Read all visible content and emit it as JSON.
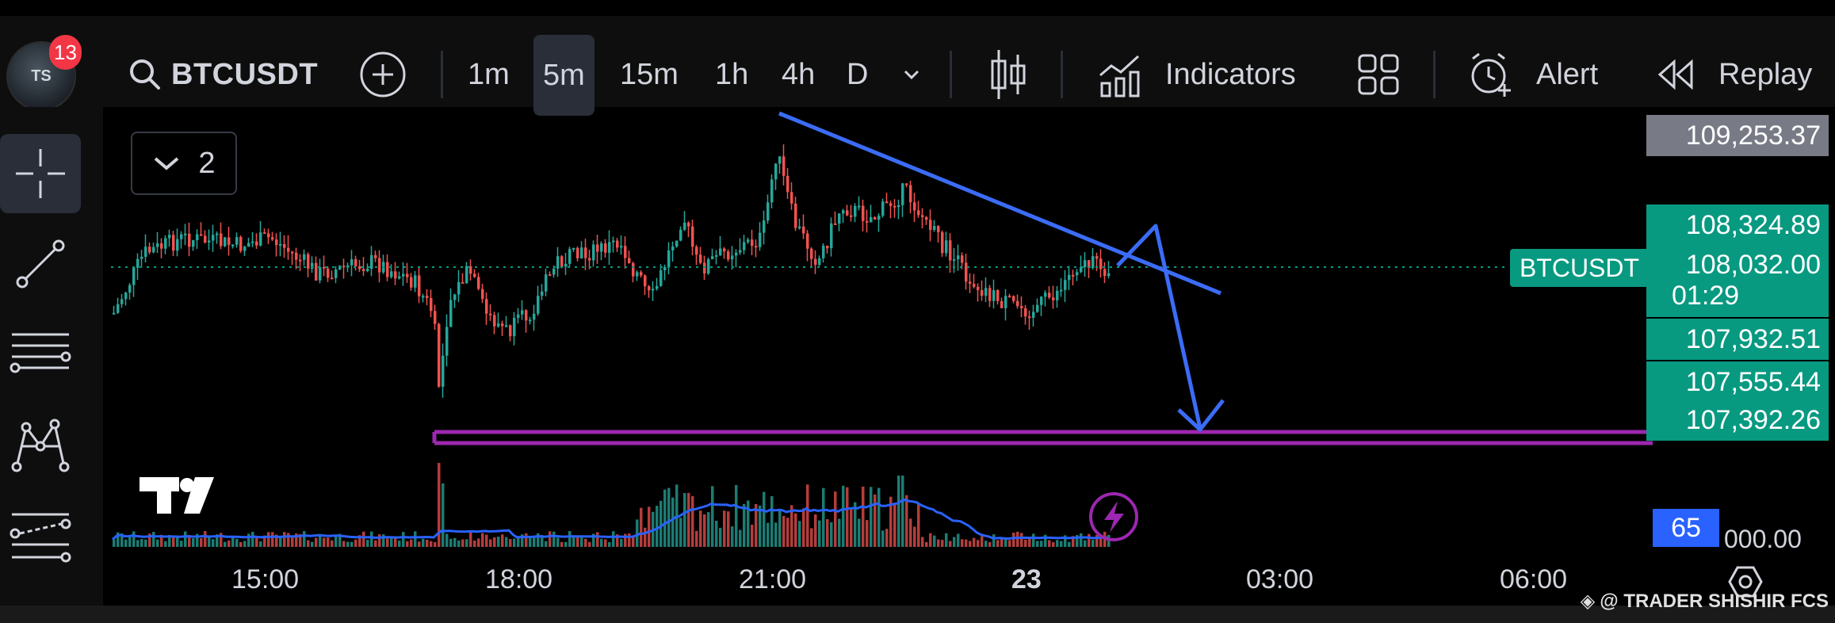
{
  "app": {
    "notification_count": "13",
    "avatar_initials": "TS"
  },
  "toolbar": {
    "symbol": "BTCUSDT",
    "intervals": [
      "1m",
      "5m",
      "15m",
      "1h",
      "4h",
      "D"
    ],
    "active_interval": "5m",
    "indicators_label": "Indicators",
    "alert_label": "Alert",
    "replay_label": "Replay"
  },
  "legend": {
    "count": "2"
  },
  "price_axis": {
    "top_price": "109,253.37",
    "price_1": "108,324.89",
    "current_price": "108,032.00",
    "countdown": "01:29",
    "price_2": "107,932.51",
    "price_3": "107,555.44",
    "price_4": "107,392.26",
    "volume_value": "65",
    "volume_axis": "000.00",
    "symbol_tag": "BTCUSDT"
  },
  "time_axis": {
    "labels": [
      "15:00",
      "18:00",
      "21:00",
      "23",
      "03:00",
      "06:00"
    ]
  },
  "watermark": "@ TRADER SHISHIR FCS",
  "colors": {
    "up": "#26a69a",
    "down": "#ef5350",
    "accent": "#2962ff",
    "trend": "#3b6cf6",
    "zone": "#9c27b0",
    "current": "#089981"
  }
}
